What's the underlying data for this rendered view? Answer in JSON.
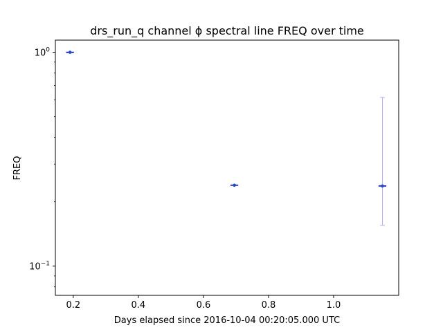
{
  "chart_data": {
    "type": "scatter",
    "title": "drs_run_q channel ϕ spectral line FREQ over time",
    "xlabel": "Days elapsed since 2016-10-04 00:20:05.000 UTC",
    "ylabel": "FREQ",
    "xlim": [
      0.145,
      1.2
    ],
    "ylim": [
      0.073,
      1.14
    ],
    "yscale": "log",
    "grid": false,
    "x_ticks": [
      {
        "value": 0.2,
        "label": "0.2"
      },
      {
        "value": 0.4,
        "label": "0.4"
      },
      {
        "value": 0.6,
        "label": "0.6"
      },
      {
        "value": 0.8,
        "label": "0.8"
      },
      {
        "value": 1.0,
        "label": "1.0"
      }
    ],
    "y_ticks": [
      {
        "value": 1.0,
        "base": "10",
        "exp": "0"
      },
      {
        "value": 0.1,
        "base": "10",
        "exp": "−1"
      }
    ],
    "series": [
      {
        "points": [
          {
            "x": 0.19,
            "y": 1.0,
            "xerr": 0.012,
            "yerr_low": 1.0,
            "yerr_high": 1.0
          },
          {
            "x": 0.695,
            "y": 0.239,
            "xerr": 0.012,
            "yerr_low": 0.239,
            "yerr_high": 0.239
          },
          {
            "x": 1.15,
            "y": 0.237,
            "xerr": 0.012,
            "yerr_low": 0.082,
            "yerr_high": 0.378
          }
        ],
        "marker_color": "#1f4fbf",
        "xerr_color": "#0000cc",
        "yerr_color": "#b0b0ff"
      }
    ]
  }
}
